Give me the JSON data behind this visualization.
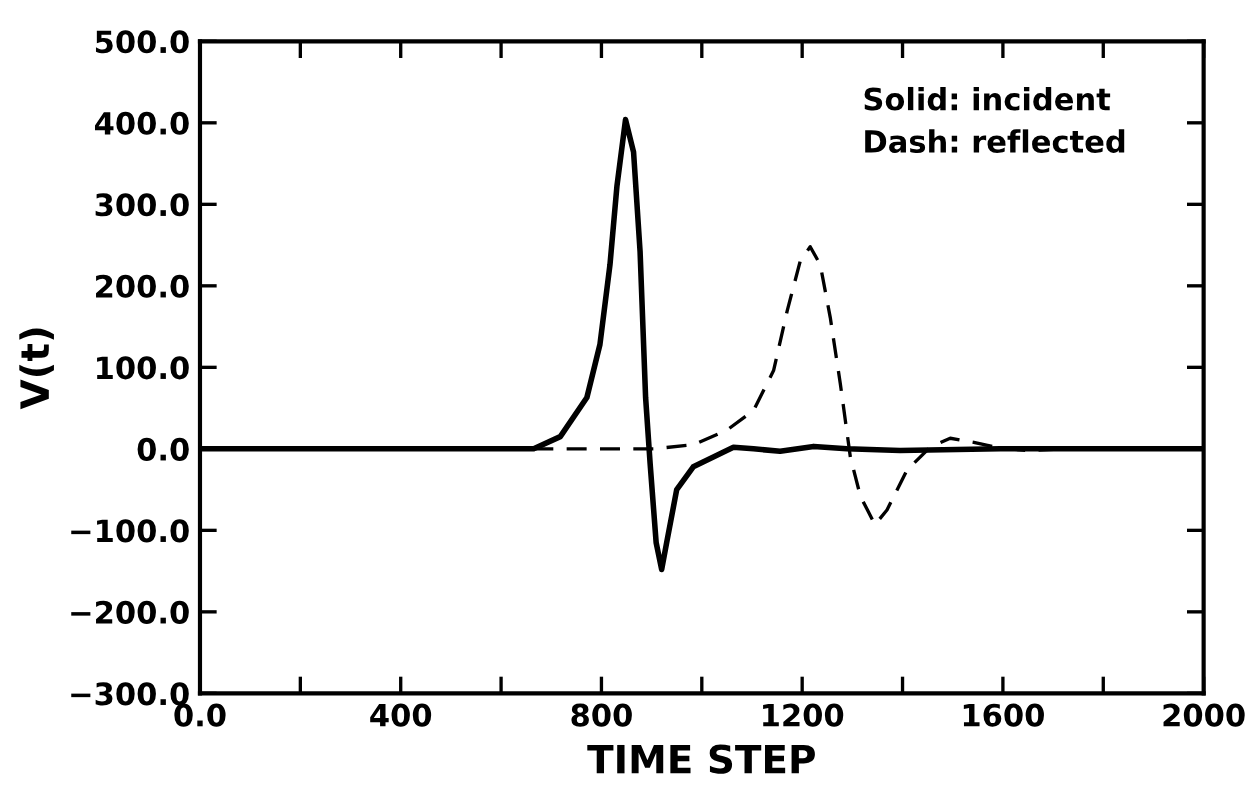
{
  "chart_data": {
    "type": "line",
    "xlabel": "TIME STEP",
    "ylabel": "V(t)",
    "annotations": [
      "Solid: incident",
      "Dash: reflected"
    ],
    "xlim": [
      0,
      2000
    ],
    "ylim": [
      -300,
      500
    ],
    "xticks": [
      {
        "value": 0,
        "label": "0.0"
      },
      {
        "value": 200,
        "label": null
      },
      400,
      {
        "value": 600,
        "label": null
      },
      800,
      {
        "value": 1000,
        "label": null
      },
      1200,
      {
        "value": 1400,
        "label": null
      },
      1600,
      {
        "value": 1800,
        "label": null
      },
      2000
    ],
    "yticks": [
      {
        "value": -300,
        "label": "−300.0"
      },
      {
        "value": -200,
        "label": "−200.0"
      },
      {
        "value": -100,
        "label": "−100.0"
      },
      {
        "value": 0,
        "label": "0.0"
      },
      {
        "value": 100,
        "label": "100.0"
      },
      {
        "value": 200,
        "label": "200.0"
      },
      {
        "value": 300,
        "label": "300.0"
      },
      {
        "value": 400,
        "label": "400.0"
      },
      {
        "value": 500,
        "label": "500.0"
      }
    ],
    "grid": false,
    "legend": false,
    "marker": "none",
    "series": [
      {
        "color": "#000000",
        "line_style": "solid",
        "x": [
          0,
          665,
          718,
          771,
          797,
          817,
          831,
          848,
          864,
          877,
          888,
          897,
          909,
          920,
          930,
          950,
          983,
          1023,
          1063,
          1103,
          1156,
          1223,
          1289,
          1395,
          1595,
          2000
        ],
        "values": [
          0,
          0,
          15,
          63,
          128,
          226,
          323,
          404,
          364,
          242,
          63,
          -18,
          -115,
          -148,
          -115,
          -50,
          -22,
          -10,
          2,
          0,
          -3,
          3,
          0,
          -2,
          0,
          0
        ]
      },
      {
        "color": "#000000",
        "line_style": "dashed",
        "x": [
          0,
          904,
          983,
          1050,
          1103,
          1143,
          1170,
          1196,
          1216,
          1236,
          1256,
          1276,
          1296,
          1316,
          1345,
          1369,
          1409,
          1455,
          1495,
          1542,
          1595,
          1648,
          1728,
          2000
        ],
        "values": [
          0,
          0,
          5,
          23,
          47,
          96,
          169,
          230,
          248,
          226,
          161,
          80,
          -10,
          -58,
          -93,
          -75,
          -26,
          2,
          13,
          8,
          1,
          -2,
          0,
          0
        ]
      }
    ]
  }
}
